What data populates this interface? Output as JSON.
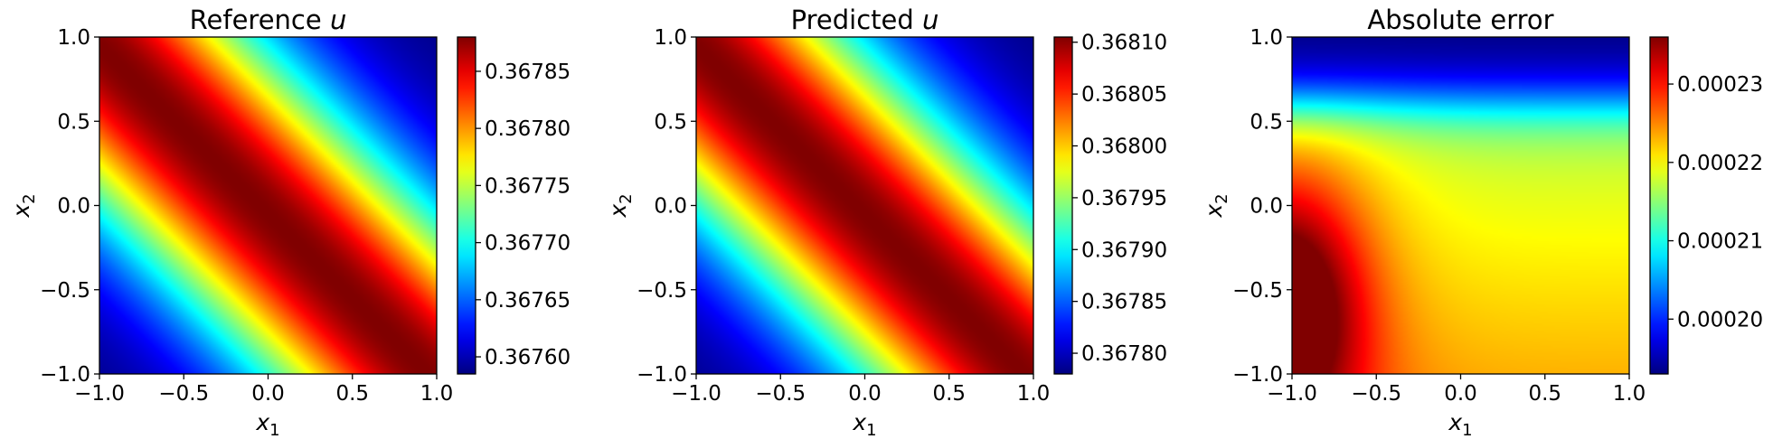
{
  "chart_data": [
    {
      "type": "heatmap",
      "title": "Reference u",
      "title_main": "Reference ",
      "title_var": "u",
      "xlabel": "x1",
      "ylabel": "x2",
      "xlabel_main": "x",
      "xlabel_sub": "1",
      "ylabel_main": "x",
      "ylabel_sub": "2",
      "xlim": [
        -1.0,
        1.0
      ],
      "ylim": [
        -1.0,
        1.0
      ],
      "xticks": [
        -1.0,
        -0.5,
        0.0,
        0.5,
        1.0
      ],
      "yticks": [
        -1.0,
        -0.5,
        0.0,
        0.5,
        1.0
      ],
      "xtick_labels": [
        "−1.0",
        "−0.5",
        "0.0",
        "0.5",
        "1.0"
      ],
      "ytick_labels": [
        "−1.0",
        "−0.5",
        "0.0",
        "0.5",
        "1.0"
      ],
      "colormap": "jet",
      "clim": [
        0.367585,
        0.36788
      ],
      "colorbar_ticks": [
        0.3676,
        0.36765,
        0.3677,
        0.36775,
        0.3678,
        0.36785
      ],
      "colorbar_labels": [
        "0.36760",
        "0.36765",
        "0.36770",
        "0.36775",
        "0.36780",
        "0.36785"
      ],
      "field": {
        "kind": "gaussian_ridge",
        "ridge_center": [
          -0.15,
          0.1
        ],
        "direction": [
          0.707,
          0.707
        ],
        "width": 0.72,
        "value_range": [
          0.367585,
          0.36788
        ]
      }
    },
    {
      "type": "heatmap",
      "title": "Predicted u",
      "title_main": "Predicted ",
      "title_var": "u",
      "xlabel": "x1",
      "ylabel": "x2",
      "xlabel_main": "x",
      "xlabel_sub": "1",
      "ylabel_main": "x",
      "ylabel_sub": "2",
      "xlim": [
        -1.0,
        1.0
      ],
      "ylim": [
        -1.0,
        1.0
      ],
      "xticks": [
        -1.0,
        -0.5,
        0.0,
        0.5,
        1.0
      ],
      "yticks": [
        -1.0,
        -0.5,
        0.0,
        0.5,
        1.0
      ],
      "xtick_labels": [
        "−1.0",
        "−0.5",
        "0.0",
        "0.5",
        "1.0"
      ],
      "ytick_labels": [
        "−1.0",
        "−0.5",
        "0.0",
        "0.5",
        "1.0"
      ],
      "colormap": "jet",
      "clim": [
        0.36778,
        0.368105
      ],
      "colorbar_ticks": [
        0.3678,
        0.36785,
        0.3679,
        0.36795,
        0.368,
        0.36805,
        0.3681
      ],
      "colorbar_labels": [
        "0.36780",
        "0.36785",
        "0.36790",
        "0.36795",
        "0.36800",
        "0.36805",
        "0.36810"
      ],
      "field": {
        "kind": "gaussian_ridge",
        "ridge_center": [
          -0.15,
          0.1
        ],
        "direction": [
          0.707,
          0.707
        ],
        "width": 0.72,
        "value_range": [
          0.36778,
          0.368105
        ]
      }
    },
    {
      "type": "heatmap",
      "title": "Absolute error",
      "title_main": "Absolute error",
      "title_var": "",
      "xlabel": "x1",
      "ylabel": "x2",
      "xlabel_main": "x",
      "xlabel_sub": "1",
      "ylabel_main": "x",
      "ylabel_sub": "2",
      "xlim": [
        -1.0,
        1.0
      ],
      "ylim": [
        -1.0,
        1.0
      ],
      "xticks": [
        -1.0,
        -0.5,
        0.0,
        0.5,
        1.0
      ],
      "yticks": [
        -1.0,
        -0.5,
        0.0,
        0.5,
        1.0
      ],
      "xtick_labels": [
        "−1.0",
        "−0.5",
        "0.0",
        "0.5",
        "1.0"
      ],
      "ytick_labels": [
        "−1.0",
        "−0.5",
        "0.0",
        "0.5",
        "1.0"
      ],
      "colormap": "jet",
      "clim": [
        0.000193,
        0.000236
      ],
      "colorbar_ticks": [
        0.0002,
        0.00021,
        0.00022,
        0.00023
      ],
      "colorbar_labels": [
        "0.00020",
        "0.00021",
        "0.00022",
        "0.00023"
      ],
      "field": {
        "kind": "error_surface",
        "value_range": [
          0.000193,
          0.000236
        ]
      }
    }
  ]
}
